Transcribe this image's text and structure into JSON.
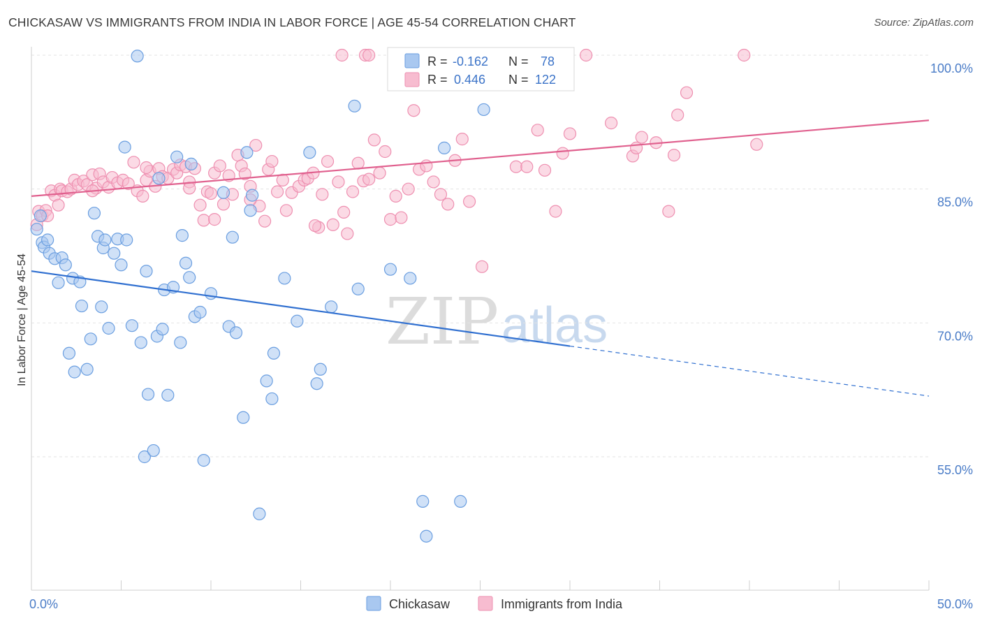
{
  "header": {
    "title": "CHICKASAW VS IMMIGRANTS FROM INDIA IN LABOR FORCE | AGE 45-54 CORRELATION CHART",
    "source": "Source: ZipAtlas.com"
  },
  "watermark": {
    "zip": "ZIP",
    "atlas": "atlas"
  },
  "legend": {
    "rows": [
      {
        "r_label": "R =",
        "r_value": "-0.162",
        "n_label": "N =",
        "n_value": "78"
      },
      {
        "r_label": "R =",
        "r_value": "0.446",
        "n_label": "N =",
        "n_value": "122"
      }
    ]
  },
  "bottom_legend": {
    "series1": "Chickasaw",
    "series2": "Immigrants from India"
  },
  "colors": {
    "chickasaw_fill": "#a9c8f0",
    "chickasaw_stroke": "#6a9ee0",
    "chickasaw_line": "#2f6fd0",
    "india_fill": "#f7bcd0",
    "india_stroke": "#ee8fb0",
    "india_line": "#e0608e",
    "tick_label": "#4a7cc7",
    "grid": "#e3e3e3"
  },
  "chart_data": {
    "type": "scatter",
    "title": "CHICKASAW VS IMMIGRANTS FROM INDIA IN LABOR FORCE | AGE 45-54 CORRELATION CHART",
    "ylabel": "In Labor Force | Age 45-54",
    "xlabel": "",
    "x_tick_labels": [
      "0.0%",
      "50.0%"
    ],
    "y_tick_labels": [
      "100.0%",
      "85.0%",
      "70.0%",
      "55.0%"
    ],
    "y_ticks": [
      100,
      85,
      70,
      55
    ],
    "xlim": [
      0,
      50
    ],
    "ylim": [
      42,
      101.5
    ],
    "grid": true,
    "legend_position": "top-center",
    "series": [
      {
        "name": "Chickasaw",
        "r": -0.162,
        "n": 78,
        "trend": {
          "x_start": 0,
          "y_start": 75.8,
          "x_solid_end": 30,
          "y_solid_end": 67.4,
          "x_end": 50,
          "y_end": 61.8
        },
        "points": [
          [
            0.3,
            80.5
          ],
          [
            0.5,
            82.0
          ],
          [
            0.6,
            79.0
          ],
          [
            0.7,
            78.5
          ],
          [
            0.9,
            79.3
          ],
          [
            1.0,
            77.8
          ],
          [
            1.3,
            77.2
          ],
          [
            1.5,
            74.5
          ],
          [
            1.7,
            77.3
          ],
          [
            1.9,
            76.5
          ],
          [
            2.1,
            66.6
          ],
          [
            2.3,
            75.0
          ],
          [
            2.4,
            64.5
          ],
          [
            2.7,
            74.6
          ],
          [
            2.8,
            71.9
          ],
          [
            3.1,
            64.8
          ],
          [
            3.3,
            68.2
          ],
          [
            3.5,
            82.3
          ],
          [
            3.7,
            79.7
          ],
          [
            3.9,
            71.8
          ],
          [
            4.0,
            78.4
          ],
          [
            4.1,
            79.3
          ],
          [
            4.3,
            69.4
          ],
          [
            4.6,
            77.8
          ],
          [
            4.8,
            79.4
          ],
          [
            5.0,
            76.5
          ],
          [
            5.2,
            89.7
          ],
          [
            5.3,
            79.3
          ],
          [
            5.6,
            69.7
          ],
          [
            5.9,
            99.9
          ],
          [
            6.1,
            67.8
          ],
          [
            6.3,
            55.0
          ],
          [
            6.4,
            75.8
          ],
          [
            6.5,
            62.0
          ],
          [
            6.8,
            55.7
          ],
          [
            7.0,
            68.5
          ],
          [
            7.1,
            86.2
          ],
          [
            7.3,
            69.3
          ],
          [
            7.4,
            73.7
          ],
          [
            7.6,
            61.9
          ],
          [
            7.9,
            74.0
          ],
          [
            8.1,
            88.6
          ],
          [
            8.3,
            67.8
          ],
          [
            8.4,
            79.8
          ],
          [
            8.6,
            76.7
          ],
          [
            8.8,
            75.1
          ],
          [
            8.9,
            87.8
          ],
          [
            9.1,
            70.7
          ],
          [
            9.4,
            71.2
          ],
          [
            9.6,
            54.6
          ],
          [
            10.0,
            73.3
          ],
          [
            10.7,
            84.6
          ],
          [
            11.0,
            69.6
          ],
          [
            11.2,
            79.6
          ],
          [
            11.4,
            68.9
          ],
          [
            11.8,
            59.4
          ],
          [
            12.0,
            89.1
          ],
          [
            12.2,
            82.6
          ],
          [
            12.3,
            84.3
          ],
          [
            12.7,
            48.6
          ],
          [
            13.1,
            63.5
          ],
          [
            13.4,
            61.5
          ],
          [
            13.5,
            66.6
          ],
          [
            14.1,
            75.0
          ],
          [
            14.8,
            70.2
          ],
          [
            15.5,
            89.1
          ],
          [
            15.9,
            63.2
          ],
          [
            16.1,
            64.8
          ],
          [
            16.7,
            71.8
          ],
          [
            18.0,
            94.3
          ],
          [
            18.2,
            73.8
          ],
          [
            21.1,
            75.0
          ],
          [
            21.8,
            50.0
          ],
          [
            22.0,
            46.1
          ],
          [
            23.0,
            89.6
          ],
          [
            23.9,
            50.0
          ],
          [
            25.2,
            93.9
          ],
          [
            20.0,
            76.0
          ]
        ]
      },
      {
        "name": "Immigrants from India",
        "r": 0.446,
        "n": 122,
        "trend": {
          "x_start": 0,
          "y_start": 84.2,
          "x_end": 50,
          "y_end": 92.7
        },
        "points": [
          [
            0.3,
            81.0
          ],
          [
            0.4,
            82.5
          ],
          [
            0.6,
            82.0
          ],
          [
            0.8,
            82.6
          ],
          [
            0.9,
            82.0
          ],
          [
            1.1,
            84.8
          ],
          [
            1.3,
            84.3
          ],
          [
            1.6,
            85.0
          ],
          [
            1.7,
            84.8
          ],
          [
            2.0,
            84.7
          ],
          [
            2.2,
            85.0
          ],
          [
            2.4,
            86.0
          ],
          [
            2.6,
            85.5
          ],
          [
            2.9,
            85.9
          ],
          [
            3.1,
            85.5
          ],
          [
            3.4,
            86.6
          ],
          [
            3.6,
            85.1
          ],
          [
            3.8,
            86.7
          ],
          [
            4.0,
            85.8
          ],
          [
            4.3,
            85.2
          ],
          [
            4.5,
            86.3
          ],
          [
            4.8,
            85.7
          ],
          [
            5.1,
            86.0
          ],
          [
            5.4,
            85.6
          ],
          [
            5.7,
            88.0
          ],
          [
            5.9,
            84.8
          ],
          [
            6.2,
            84.2
          ],
          [
            6.4,
            86.0
          ],
          [
            6.6,
            87.0
          ],
          [
            6.9,
            85.3
          ],
          [
            7.1,
            87.3
          ],
          [
            7.3,
            86.4
          ],
          [
            7.6,
            86.2
          ],
          [
            7.9,
            87.2
          ],
          [
            8.1,
            86.8
          ],
          [
            8.3,
            87.7
          ],
          [
            8.6,
            87.5
          ],
          [
            8.8,
            85.8
          ],
          [
            9.1,
            87.3
          ],
          [
            9.4,
            83.2
          ],
          [
            9.6,
            81.5
          ],
          [
            9.8,
            84.7
          ],
          [
            10.0,
            84.5
          ],
          [
            10.2,
            86.8
          ],
          [
            10.5,
            87.6
          ],
          [
            10.7,
            83.3
          ],
          [
            11.0,
            86.5
          ],
          [
            11.2,
            84.4
          ],
          [
            11.5,
            88.8
          ],
          [
            11.7,
            87.6
          ],
          [
            11.9,
            86.7
          ],
          [
            12.2,
            85.3
          ],
          [
            12.5,
            89.9
          ],
          [
            12.7,
            83.1
          ],
          [
            13.0,
            81.4
          ],
          [
            13.2,
            87.2
          ],
          [
            13.4,
            88.1
          ],
          [
            13.7,
            84.7
          ],
          [
            14.0,
            86.0
          ],
          [
            14.2,
            82.6
          ],
          [
            14.5,
            84.6
          ],
          [
            14.9,
            85.3
          ],
          [
            15.2,
            86.0
          ],
          [
            15.4,
            86.2
          ],
          [
            15.7,
            86.8
          ],
          [
            16.0,
            80.7
          ],
          [
            16.2,
            84.4
          ],
          [
            16.5,
            88.1
          ],
          [
            16.8,
            81.0
          ],
          [
            17.1,
            85.8
          ],
          [
            17.4,
            82.4
          ],
          [
            17.6,
            80.0
          ],
          [
            17.9,
            84.7
          ],
          [
            18.2,
            87.9
          ],
          [
            18.5,
            85.9
          ],
          [
            18.8,
            86.1
          ],
          [
            19.1,
            90.5
          ],
          [
            19.4,
            86.8
          ],
          [
            19.7,
            89.2
          ],
          [
            20.0,
            81.6
          ],
          [
            20.3,
            84.2
          ],
          [
            20.6,
            81.8
          ],
          [
            21.0,
            85.0
          ],
          [
            21.3,
            93.8
          ],
          [
            21.6,
            87.2
          ],
          [
            22.0,
            87.6
          ],
          [
            22.4,
            85.8
          ],
          [
            22.8,
            84.4
          ],
          [
            23.2,
            83.3
          ],
          [
            23.6,
            88.2
          ],
          [
            24.0,
            90.6
          ],
          [
            24.4,
            83.6
          ],
          [
            25.1,
            76.3
          ],
          [
            27.0,
            87.5
          ],
          [
            27.6,
            87.5
          ],
          [
            28.2,
            91.6
          ],
          [
            28.6,
            87.1
          ],
          [
            29.2,
            82.5
          ],
          [
            29.6,
            89.0
          ],
          [
            30.0,
            91.2
          ],
          [
            30.9,
            100.0
          ],
          [
            32.3,
            92.4
          ],
          [
            33.5,
            88.7
          ],
          [
            33.7,
            89.6
          ],
          [
            34.0,
            90.8
          ],
          [
            34.8,
            90.2
          ],
          [
            35.5,
            82.5
          ],
          [
            35.8,
            88.8
          ],
          [
            36.0,
            93.3
          ],
          [
            36.5,
            95.8
          ],
          [
            39.7,
            100.0
          ],
          [
            40.4,
            90.0
          ],
          [
            17.3,
            100.0
          ],
          [
            18.6,
            100.0
          ],
          [
            18.8,
            100.0
          ],
          [
            12.2,
            83.8
          ],
          [
            10.2,
            81.6
          ],
          [
            15.8,
            80.9
          ],
          [
            8.8,
            85.1
          ],
          [
            6.4,
            87.4
          ],
          [
            3.4,
            84.8
          ],
          [
            1.5,
            83.2
          ]
        ]
      }
    ]
  }
}
